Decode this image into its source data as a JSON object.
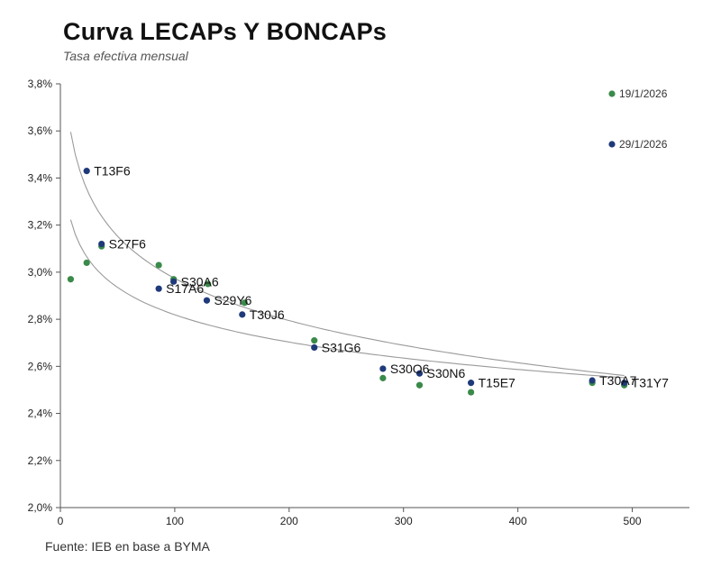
{
  "header": {
    "title": "Curva LECAPs Y BONCAPs",
    "subtitle": "Tasa efectiva mensual"
  },
  "footer": {
    "source": "Fuente: IEB en base a BYMA"
  },
  "chart_data": {
    "type": "scatter",
    "title": "Curva LECAPs Y BONCAPs",
    "subtitle": "Tasa efectiva mensual",
    "xlabel": "",
    "ylabel": "",
    "xlim": [
      0,
      550
    ],
    "ylim": [
      2.0,
      3.8
    ],
    "xticks": [
      0,
      100,
      200,
      300,
      400,
      500
    ],
    "yticks": [
      2.0,
      2.2,
      2.4,
      2.6,
      2.8,
      3.0,
      3.2,
      3.4,
      3.6,
      3.8
    ],
    "ytick_labels": [
      "2,0%",
      "2,2%",
      "2,4%",
      "2,6%",
      "2,8%",
      "3,0%",
      "3,2%",
      "3,4%",
      "3,6%",
      "3,8%"
    ],
    "grid": false,
    "legend_position": "top-right",
    "colors": {
      "19/1/2026": "#3a8a4a",
      "29/1/2026": "#1f3a7a",
      "trend": "#9a9a9a"
    },
    "series": [
      {
        "name": "19/1/2026",
        "color": "#3a8a4a",
        "points": [
          {
            "x": 9,
            "y": 2.97
          },
          {
            "x": 23,
            "y": 3.04
          },
          {
            "x": 36,
            "y": 3.11
          },
          {
            "x": 86,
            "y": 3.03
          },
          {
            "x": 99,
            "y": 2.97
          },
          {
            "x": 129,
            "y": 2.95
          },
          {
            "x": 161,
            "y": 2.87
          },
          {
            "x": 222,
            "y": 2.71
          },
          {
            "x": 282,
            "y": 2.55
          },
          {
            "x": 314,
            "y": 2.52
          },
          {
            "x": 359,
            "y": 2.49
          },
          {
            "x": 465,
            "y": 2.53
          },
          {
            "x": 493,
            "y": 2.52
          }
        ]
      },
      {
        "name": "29/1/2026",
        "color": "#1f3a7a",
        "points": [
          {
            "x": 23,
            "y": 3.43,
            "label": "T13F6"
          },
          {
            "x": 36,
            "y": 3.12,
            "label": "S27F6"
          },
          {
            "x": 86,
            "y": 2.93,
            "label": "S17A6"
          },
          {
            "x": 99,
            "y": 2.96,
            "label": "S30A6"
          },
          {
            "x": 128,
            "y": 2.88,
            "label": "S29Y6"
          },
          {
            "x": 159,
            "y": 2.82,
            "label": "T30J6"
          },
          {
            "x": 222,
            "y": 2.68,
            "label": "S31G6"
          },
          {
            "x": 282,
            "y": 2.59,
            "label": "S30O6"
          },
          {
            "x": 314,
            "y": 2.57,
            "label": "S30N6"
          },
          {
            "x": 359,
            "y": 2.53,
            "label": "T15E7"
          },
          {
            "x": 465,
            "y": 2.54,
            "label": "T30A7"
          },
          {
            "x": 493,
            "y": 2.53,
            "label": "T31Y7"
          }
        ]
      }
    ],
    "trendlines": [
      {
        "name": "19/1/2026",
        "type": "logarithmic",
        "a": 3.591,
        "b": -0.1676,
        "x_range": [
          9,
          493
        ]
      },
      {
        "name": "29/1/2026",
        "type": "logarithmic",
        "a": 4.164,
        "b": -0.2585,
        "x_range": [
          9,
          493
        ]
      }
    ]
  }
}
